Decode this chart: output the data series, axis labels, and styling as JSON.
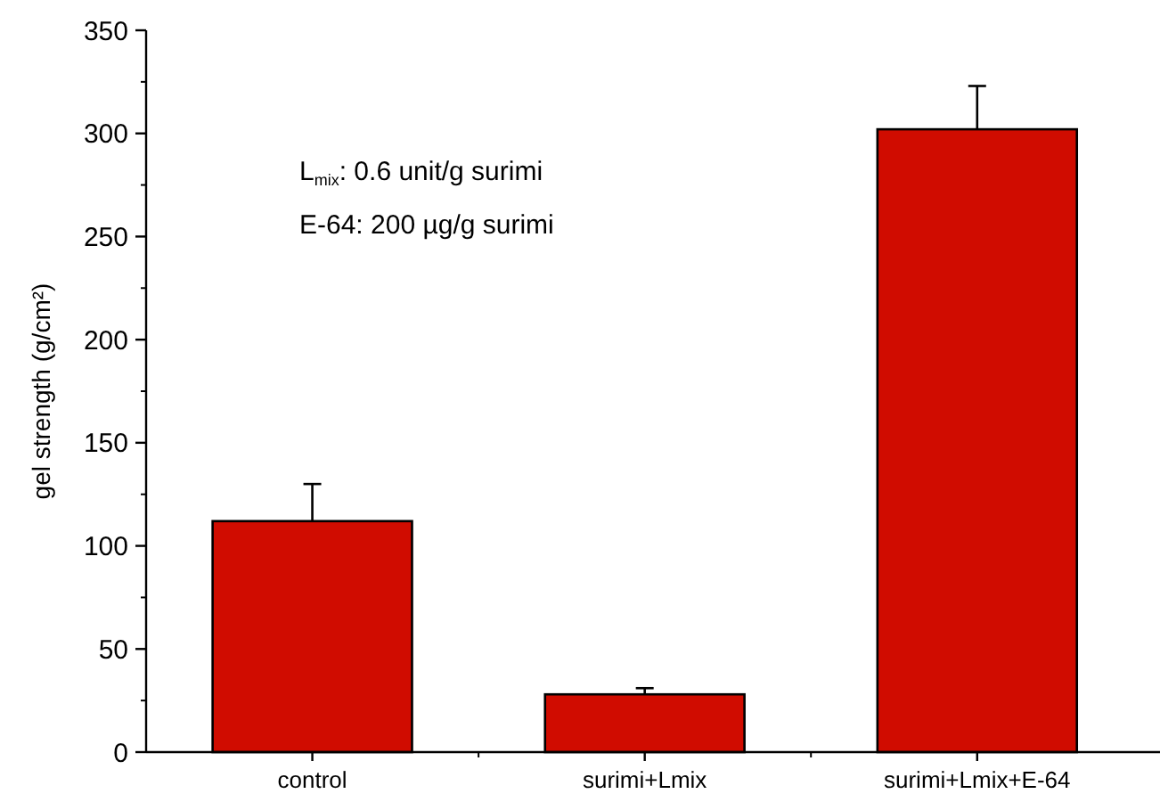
{
  "chart_data": {
    "type": "bar",
    "ylabel": "gel strength (g/cm²)",
    "categories": [
      "control",
      "surimi+Lmix",
      "surimi+Lmix+E-64"
    ],
    "values": [
      112,
      28,
      302
    ],
    "errors": [
      18,
      3,
      21
    ],
    "color": "#d00c00",
    "ylim": [
      0,
      350
    ],
    "yticks": [
      0,
      50,
      100,
      150,
      200,
      250,
      300,
      350
    ],
    "grid": false,
    "annotations": [
      "L$_{mix}$: 0.6 unit/g surimi",
      "E-64: 200 µg/g surimi"
    ]
  }
}
